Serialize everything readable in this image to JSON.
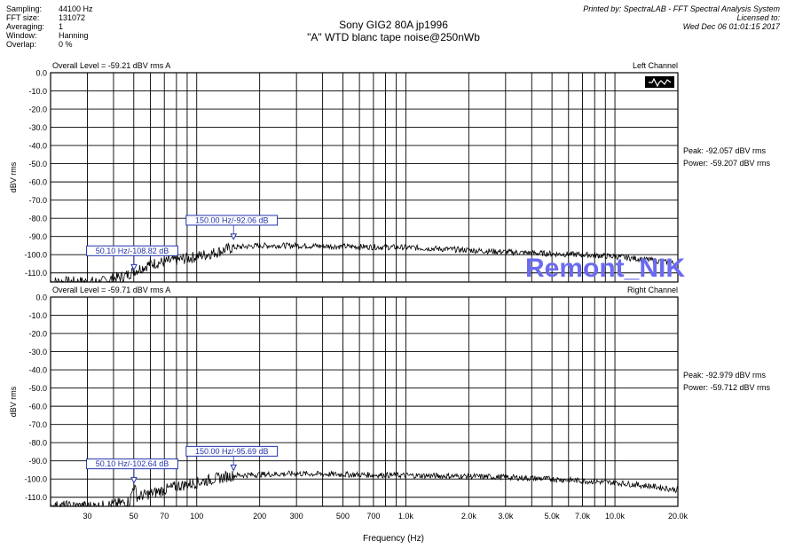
{
  "header": {
    "settings": [
      {
        "key": "Sampling:",
        "value": "44100 Hz"
      },
      {
        "key": "FFT size:",
        "value": "131072"
      },
      {
        "key": "Averaging:",
        "value": "1"
      },
      {
        "key": "Window:",
        "value": "Hanning"
      },
      {
        "key": "Overlap:",
        "value": "0 %"
      }
    ],
    "title_line1": "Sony GIG2 80A jp1996",
    "title_line2": "\"A\" WTD blanc tape noise@250nWb",
    "credits": [
      "Printed by: SpectraLAB - FFT Spectral Analysis System",
      "Licensed to:",
      "Wed Dec 06 01:01:15 2017"
    ]
  },
  "watermark": "Remont_NIK",
  "xlabel": "Frequency (Hz)",
  "chart_data": [
    {
      "type": "line",
      "channel": "Left Channel",
      "overall_level": "Overall Level = -59.21 dBV rms A",
      "ylabel": "dBV rms",
      "peak": "Peak: -92.057 dBV rms",
      "power": "Power: -59.207 dBV rms",
      "x_scale": "log",
      "xlim": [
        20,
        20000
      ],
      "ylim": [
        -115,
        0
      ],
      "grid": true,
      "x_ticks": [
        30,
        50,
        70,
        100,
        200,
        300,
        500,
        700,
        1000,
        2000,
        3000,
        5000,
        7000,
        10000,
        20000
      ],
      "x_tick_labels": [
        "30",
        "50",
        "70",
        "100",
        "200",
        "300",
        "500",
        "700",
        "1.0k",
        "2.0k",
        "3.0k",
        "5.0k",
        "7.0k",
        "10.0k",
        "20.0k"
      ],
      "y_ticks": [
        0,
        -10,
        -20,
        -30,
        -40,
        -50,
        -60,
        -70,
        -80,
        -90,
        -100,
        -110
      ],
      "y_tick_labels": [
        "0.0",
        "-10.0",
        "-20.0",
        "-30.0",
        "-40.0",
        "-50.0",
        "-60.0",
        "-70.0",
        "-80.0",
        "-90.0",
        "-100.0",
        "-110.0"
      ],
      "markers": [
        {
          "x": 50.1,
          "y": -108.82,
          "label": "50.10 Hz/-108.82 dB"
        },
        {
          "x": 150,
          "y": -92.06,
          "label": "150.00 Hz/-92.06 dB"
        }
      ],
      "series": [
        {
          "x": [
            20,
            35,
            40,
            45,
            50,
            55,
            60,
            70,
            80,
            90,
            100,
            120,
            150,
            200,
            300,
            500,
            1000,
            2000,
            3000,
            5000,
            7000,
            10000,
            15000,
            20000
          ],
          "y": [
            -115,
            -115,
            -113,
            -112,
            -109,
            -107,
            -105,
            -104,
            -103,
            -102,
            -101,
            -99,
            -96,
            -95,
            -95,
            -95.5,
            -96,
            -97.5,
            -98.5,
            -99.5,
            -100,
            -101,
            -103,
            -105
          ]
        }
      ]
    },
    {
      "type": "line",
      "channel": "Right Channel",
      "overall_level": "Overall Level = -59.71 dBV rms A",
      "ylabel": "dBV rms",
      "peak": "Peak: -92.979 dBV rms",
      "power": "Power: -59.712 dBV rms",
      "x_scale": "log",
      "xlim": [
        20,
        20000
      ],
      "ylim": [
        -115,
        0
      ],
      "grid": true,
      "x_ticks": [
        30,
        50,
        70,
        100,
        200,
        300,
        500,
        700,
        1000,
        2000,
        3000,
        5000,
        7000,
        10000,
        20000
      ],
      "x_tick_labels": [
        "30",
        "50",
        "70",
        "100",
        "200",
        "300",
        "500",
        "700",
        "1.0k",
        "2.0k",
        "3.0k",
        "5.0k",
        "7.0k",
        "10.0k",
        "20.0k"
      ],
      "y_ticks": [
        0,
        -10,
        -20,
        -30,
        -40,
        -50,
        -60,
        -70,
        -80,
        -90,
        -100,
        -110
      ],
      "y_tick_labels": [
        "0.0",
        "-10.0",
        "-20.0",
        "-30.0",
        "-40.0",
        "-50.0",
        "-60.0",
        "-70.0",
        "-80.0",
        "-90.0",
        "-100.0",
        "-110.0"
      ],
      "markers": [
        {
          "x": 50.1,
          "y": -102.64,
          "label": "50.10 Hz/-102.64 dB"
        },
        {
          "x": 150,
          "y": -95.69,
          "label": "150.00 Hz/-95.69 dB"
        }
      ],
      "series": [
        {
          "x": [
            20,
            35,
            40,
            45,
            48,
            50,
            52,
            55,
            60,
            70,
            80,
            90,
            100,
            120,
            150,
            200,
            300,
            500,
            1000,
            2000,
            3000,
            5000,
            7000,
            10000,
            15000,
            20000
          ],
          "y": [
            -115,
            -115,
            -114,
            -113,
            -112,
            -103,
            -110,
            -109,
            -108,
            -106,
            -104,
            -103,
            -102,
            -100,
            -98,
            -97.5,
            -97,
            -97.5,
            -98,
            -98.5,
            -99,
            -100,
            -101,
            -102,
            -104,
            -106
          ]
        }
      ]
    }
  ]
}
